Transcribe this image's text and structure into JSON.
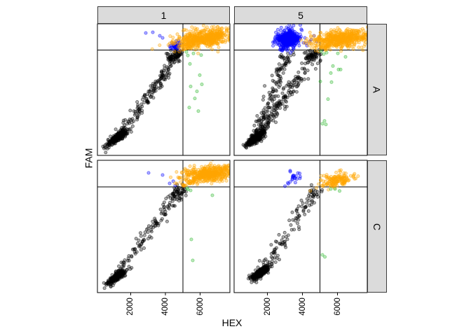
{
  "chart_data": {
    "type": "scatter",
    "xlabel": "HEX",
    "ylabel": "FAM",
    "facet_cols": [
      "1",
      "5"
    ],
    "facet_rows": [
      "A",
      "C"
    ],
    "xlim": [
      100,
      7700
    ],
    "ylim": [
      0,
      10000
    ],
    "x_ticks": {
      "values": [
        2000,
        4000,
        6000
      ],
      "labels": [
        "2000",
        "4000",
        "6000"
      ]
    },
    "y_ticks": {
      "values": [],
      "labels": []
    },
    "thresholds": {
      "x": 5000,
      "y": 8000
    },
    "grid": false,
    "legend": "none",
    "colors": {
      "black": "#000000",
      "blue": "#0000ff",
      "orange": "#ffa500",
      "green": "#2eb82e",
      "threshold_line": "#000000",
      "panel_border": "#000000",
      "strip_bg": "#dbdbdb"
    },
    "point_style": {
      "radius": 2.1,
      "fill_opacity": 0.32,
      "stroke_opacity": 0.55,
      "stroke_width": 0.8
    },
    "panels": [
      {
        "col": "1",
        "row": "A",
        "groups": [
          {
            "type": "gauss",
            "color": "black",
            "seed": 11,
            "count": 260,
            "cx": 1270,
            "cy": 1400,
            "sx": 260,
            "sy": 170,
            "slope": 0.9
          },
          {
            "type": "streak",
            "color": "black",
            "seed": 12,
            "count": 16,
            "x1": 520,
            "y1": 620,
            "x2": 1270,
            "y2": 1400,
            "jx": 110,
            "jy": 110
          },
          {
            "type": "streak",
            "color": "black",
            "seed": 13,
            "count": 175,
            "x1": 1350,
            "y1": 1500,
            "x2": 4880,
            "y2": 7880,
            "jx": 175,
            "jy": 175
          },
          {
            "type": "gauss",
            "color": "black",
            "seed": 14,
            "count": 55,
            "cx": 4560,
            "cy": 7620,
            "sx": 260,
            "sy": 200,
            "slope": 0.3
          },
          {
            "type": "points",
            "color": "blue",
            "pts": [
              [
                2874,
                9305
              ],
              [
                3276,
                9358
              ],
              [
                3678,
                9091
              ],
              [
                3839,
                8930
              ],
              [
                4361,
                8556
              ]
            ]
          },
          {
            "type": "gauss",
            "color": "blue",
            "seed": 15,
            "count": 45,
            "cx": 4640,
            "cy": 8340,
            "sx": 150,
            "sy": 150,
            "slope": 0.4
          },
          {
            "type": "gauss",
            "color": "orange",
            "seed": 16,
            "count": 520,
            "cx": 6350,
            "cy": 8930,
            "sx": 850,
            "sy": 330,
            "slope": 0.18
          },
          {
            "type": "gauss",
            "color": "orange",
            "seed": 17,
            "count": 30,
            "cx": 5430,
            "cy": 8330,
            "sx": 260,
            "sy": 140,
            "slope": 0.3
          },
          {
            "type": "points",
            "color": "green",
            "pts": [
              [
                5287,
                7594
              ],
              [
                5407,
                6952
              ],
              [
                5970,
                6096
              ],
              [
                5447,
                5241
              ],
              [
                5809,
                4866
              ],
              [
                5688,
                4332
              ],
              [
                6090,
                5401
              ],
              [
                5366,
                3636
              ],
              [
                5889,
                3369
              ],
              [
                5206,
                7861
              ],
              [
                5608,
                7750
              ],
              [
                6050,
                7620
              ]
            ]
          }
        ]
      },
      {
        "col": "5",
        "row": "A",
        "groups": [
          {
            "type": "gauss",
            "color": "black",
            "seed": 21,
            "count": 260,
            "cx": 1340,
            "cy": 1340,
            "sx": 260,
            "sy": 170,
            "slope": 0.9
          },
          {
            "type": "streak",
            "color": "black",
            "seed": 22,
            "count": 14,
            "x1": 700,
            "y1": 700,
            "x2": 1340,
            "y2": 1340,
            "jx": 100,
            "jy": 100
          },
          {
            "type": "streak",
            "color": "black",
            "seed": 23,
            "count": 130,
            "x1": 1450,
            "y1": 1700,
            "x2": 3150,
            "y2": 7800,
            "jx": 190,
            "jy": 190
          },
          {
            "type": "streak",
            "color": "black",
            "seed": 24,
            "count": 150,
            "x1": 1450,
            "y1": 1600,
            "x2": 4850,
            "y2": 7850,
            "jx": 200,
            "jy": 200
          },
          {
            "type": "gauss",
            "color": "black",
            "seed": 25,
            "count": 45,
            "cx": 4550,
            "cy": 7550,
            "sx": 280,
            "sy": 220,
            "slope": 0.3
          },
          {
            "type": "gauss",
            "color": "blue",
            "seed": 26,
            "count": 420,
            "cx": 3170,
            "cy": 8830,
            "sx": 330,
            "sy": 350,
            "slope": 0.15
          },
          {
            "type": "points",
            "color": "blue",
            "pts": [
              [
                4140,
                8930
              ],
              [
                4420,
                8660
              ],
              [
                4660,
                9090
              ],
              [
                4260,
                8340
              ],
              [
                4820,
                8660
              ],
              [
                3870,
                9200
              ],
              [
                4060,
                8560
              ],
              [
                4500,
                8800
              ]
            ]
          },
          {
            "type": "gauss",
            "color": "orange",
            "seed": 27,
            "count": 480,
            "cx": 6230,
            "cy": 8870,
            "sx": 880,
            "sy": 330,
            "slope": 0.15
          },
          {
            "type": "gauss",
            "color": "orange",
            "seed": 28,
            "count": 22,
            "cx": 5340,
            "cy": 8260,
            "sx": 200,
            "sy": 140,
            "slope": 0.3
          },
          {
            "type": "points",
            "color": "green",
            "pts": [
              [
                5220,
                7701
              ],
              [
                6020,
                7755
              ],
              [
                6460,
                7487
              ],
              [
                5740,
                6792
              ],
              [
                6060,
                6524
              ],
              [
                6180,
                6524
              ],
              [
                5620,
                6257
              ],
              [
                5020,
                5615
              ],
              [
                5660,
                5562
              ],
              [
                5460,
                4278
              ],
              [
                5260,
                2620
              ],
              [
                5140,
                2406
              ],
              [
                5340,
                2353
              ],
              [
                5060,
                7915
              ],
              [
                5380,
                7808
              ]
            ]
          }
        ]
      },
      {
        "col": "1",
        "row": "C",
        "groups": [
          {
            "type": "gauss",
            "color": "black",
            "seed": 31,
            "count": 230,
            "cx": 1230,
            "cy": 1220,
            "sx": 250,
            "sy": 160,
            "slope": 0.9
          },
          {
            "type": "streak",
            "color": "black",
            "seed": 32,
            "count": 12,
            "x1": 550,
            "y1": 650,
            "x2": 1230,
            "y2": 1220,
            "jx": 100,
            "jy": 100
          },
          {
            "type": "streak",
            "color": "black",
            "seed": 33,
            "count": 120,
            "x1": 1300,
            "y1": 1400,
            "x2": 4900,
            "y2": 7850,
            "jx": 180,
            "jy": 180
          },
          {
            "type": "gauss",
            "color": "black",
            "seed": 34,
            "count": 40,
            "cx": 4700,
            "cy": 7450,
            "sx": 280,
            "sy": 280,
            "slope": 0.3
          },
          {
            "type": "points",
            "color": "blue",
            "pts": [
              [
                3036,
                9048
              ],
              [
                3840,
                8889
              ],
              [
                4242,
                8254
              ],
              [
                4564,
                8095
              ],
              [
                4450,
                8420
              ]
            ]
          },
          {
            "type": "gauss",
            "color": "orange",
            "seed": 35,
            "count": 430,
            "cx": 6480,
            "cy": 8990,
            "sx": 780,
            "sy": 290,
            "slope": 0.12
          },
          {
            "type": "gauss",
            "color": "orange",
            "seed": 36,
            "count": 35,
            "cx": 5480,
            "cy": 8380,
            "sx": 300,
            "sy": 160,
            "slope": 0.3
          },
          {
            "type": "points",
            "color": "green",
            "pts": [
              [
                5247,
                7884
              ],
              [
                5448,
                7725
              ],
              [
                6694,
                7354
              ],
              [
                5488,
                4021
              ],
              [
                5569,
                2434
              ],
              [
                5300,
                7800
              ]
            ]
          }
        ]
      },
      {
        "col": "5",
        "row": "C",
        "groups": [
          {
            "type": "gauss",
            "color": "black",
            "seed": 41,
            "count": 210,
            "cx": 1580,
            "cy": 1480,
            "sx": 270,
            "sy": 170,
            "slope": 0.85
          },
          {
            "type": "streak",
            "color": "black",
            "seed": 42,
            "count": 95,
            "x1": 1650,
            "y1": 1700,
            "x2": 4870,
            "y2": 7850,
            "jx": 200,
            "jy": 200
          },
          {
            "type": "gauss",
            "color": "black",
            "seed": 43,
            "count": 18,
            "cx": 4500,
            "cy": 7300,
            "sx": 300,
            "sy": 350,
            "slope": 0.3
          },
          {
            "type": "gauss",
            "color": "blue",
            "seed": 44,
            "count": 22,
            "cx": 3460,
            "cy": 8620,
            "sx": 230,
            "sy": 220,
            "slope": 0.2
          },
          {
            "type": "gauss",
            "color": "orange",
            "seed": 45,
            "count": 140,
            "cx": 5880,
            "cy": 8480,
            "sx": 480,
            "sy": 250,
            "slope": 0.2
          },
          {
            "type": "points",
            "color": "green",
            "pts": [
              [
                5620,
                7830
              ],
              [
                5860,
                7830
              ],
              [
                6120,
                7680
              ],
              [
                5140,
                2850
              ],
              [
                5280,
                2700
              ]
            ]
          }
        ]
      }
    ]
  }
}
